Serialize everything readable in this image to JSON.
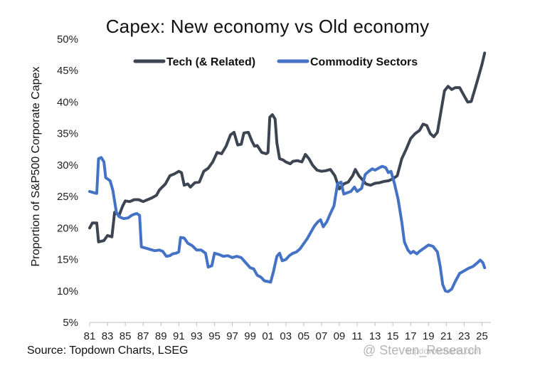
{
  "chart_data": {
    "type": "line",
    "title": "Capex: New economy vs Old economy",
    "ylabel": "Proportion of S&P500 Corporate Capex",
    "xlabel": "",
    "ylim": [
      5,
      50
    ],
    "xlim": [
      1981,
      2026
    ],
    "y_ticks": [
      5,
      10,
      15,
      20,
      25,
      30,
      35,
      40,
      45,
      50
    ],
    "y_tick_labels": [
      "5%",
      "10%",
      "15%",
      "20%",
      "25%",
      "30%",
      "35%",
      "40%",
      "45%",
      "50%"
    ],
    "x_ticks": [
      1981,
      1983,
      1985,
      1987,
      1989,
      1991,
      1993,
      1995,
      1997,
      1999,
      2001,
      2003,
      2005,
      2007,
      2009,
      2011,
      2013,
      2015,
      2017,
      2019,
      2021,
      2023,
      2025
    ],
    "x_tick_labels": [
      "81",
      "83",
      "85",
      "87",
      "89",
      "91",
      "93",
      "95",
      "97",
      "99",
      "01",
      "03",
      "05",
      "07",
      "09",
      "11",
      "13",
      "15",
      "17",
      "19",
      "21",
      "23",
      "25"
    ],
    "legend_position": "top-center",
    "series": [
      {
        "name": "Tech (& Related)",
        "color": "#3d4553",
        "points": [
          [
            1981.0,
            20.0
          ],
          [
            1981.3,
            20.8
          ],
          [
            1981.8,
            20.8
          ],
          [
            1982.0,
            17.8
          ],
          [
            1982.6,
            18.0
          ],
          [
            1983.0,
            18.8
          ],
          [
            1983.5,
            18.6
          ],
          [
            1983.8,
            22.5
          ],
          [
            1984.3,
            22.0
          ],
          [
            1984.7,
            23.5
          ],
          [
            1985.0,
            24.3
          ],
          [
            1985.5,
            24.2
          ],
          [
            1986.0,
            24.5
          ],
          [
            1986.5,
            24.5
          ],
          [
            1987.0,
            24.2
          ],
          [
            1987.5,
            24.5
          ],
          [
            1988.0,
            24.8
          ],
          [
            1988.5,
            25.2
          ],
          [
            1988.8,
            26.0
          ],
          [
            1989.0,
            26.3
          ],
          [
            1989.5,
            27.0
          ],
          [
            1990.0,
            28.3
          ],
          [
            1990.5,
            28.6
          ],
          [
            1991.0,
            29.0
          ],
          [
            1991.3,
            28.8
          ],
          [
            1991.6,
            26.8
          ],
          [
            1992.0,
            27.0
          ],
          [
            1992.3,
            26.5
          ],
          [
            1992.8,
            27.2
          ],
          [
            1993.3,
            27.3
          ],
          [
            1993.8,
            29.0
          ],
          [
            1994.3,
            29.5
          ],
          [
            1994.8,
            30.5
          ],
          [
            1995.3,
            32.0
          ],
          [
            1995.8,
            31.8
          ],
          [
            1996.3,
            33.0
          ],
          [
            1996.8,
            34.8
          ],
          [
            1997.2,
            35.2
          ],
          [
            1997.6,
            33.2
          ],
          [
            1998.0,
            33.3
          ],
          [
            1998.3,
            35.1
          ],
          [
            1998.8,
            35.2
          ],
          [
            1999.2,
            33.8
          ],
          [
            1999.5,
            33.0
          ],
          [
            1999.8,
            33.1
          ],
          [
            2000.3,
            32.0
          ],
          [
            2000.8,
            31.8
          ],
          [
            2001.0,
            32.0
          ],
          [
            2001.2,
            37.6
          ],
          [
            2001.5,
            38.0
          ],
          [
            2001.8,
            37.3
          ],
          [
            2002.0,
            33.5
          ],
          [
            2002.3,
            31.0
          ],
          [
            2002.7,
            30.8
          ],
          [
            2003.0,
            30.5
          ],
          [
            2003.5,
            30.2
          ],
          [
            2003.8,
            30.6
          ],
          [
            2004.3,
            30.7
          ],
          [
            2004.8,
            30.5
          ],
          [
            2005.2,
            31.7
          ],
          [
            2005.6,
            31.0
          ],
          [
            2006.0,
            30.0
          ],
          [
            2006.5,
            29.2
          ],
          [
            2007.0,
            29.0
          ],
          [
            2007.5,
            29.1
          ],
          [
            2008.0,
            29.3
          ],
          [
            2008.5,
            28.3
          ],
          [
            2009.0,
            26.2
          ],
          [
            2009.5,
            27.0
          ],
          [
            2010.0,
            27.3
          ],
          [
            2010.5,
            28.3
          ],
          [
            2010.8,
            29.3
          ],
          [
            2011.2,
            28.3
          ],
          [
            2011.5,
            27.8
          ],
          [
            2012.0,
            27.0
          ],
          [
            2012.5,
            26.8
          ],
          [
            2013.0,
            27.1
          ],
          [
            2013.5,
            27.2
          ],
          [
            2014.0,
            27.4
          ],
          [
            2014.5,
            27.5
          ],
          [
            2015.0,
            27.8
          ],
          [
            2015.5,
            28.3
          ],
          [
            2016.0,
            31.0
          ],
          [
            2016.5,
            32.5
          ],
          [
            2017.0,
            34.2
          ],
          [
            2017.5,
            35.0
          ],
          [
            2018.0,
            35.5
          ],
          [
            2018.4,
            36.5
          ],
          [
            2018.8,
            36.3
          ],
          [
            2019.2,
            35.0
          ],
          [
            2019.6,
            34.5
          ],
          [
            2020.0,
            35.2
          ],
          [
            2020.4,
            38.5
          ],
          [
            2020.8,
            41.8
          ],
          [
            2021.2,
            42.5
          ],
          [
            2021.6,
            42.0
          ],
          [
            2022.0,
            42.3
          ],
          [
            2022.5,
            42.3
          ],
          [
            2023.0,
            41.0
          ],
          [
            2023.4,
            40.0
          ],
          [
            2023.8,
            40.1
          ],
          [
            2024.2,
            42.0
          ],
          [
            2024.6,
            44.0
          ],
          [
            2025.0,
            46.0
          ],
          [
            2025.3,
            47.8
          ]
        ]
      },
      {
        "name": "Commodity Sectors",
        "color": "#4472c4",
        "points": [
          [
            1981.0,
            25.8
          ],
          [
            1981.5,
            25.6
          ],
          [
            1981.8,
            25.5
          ],
          [
            1982.0,
            31.0
          ],
          [
            1982.3,
            31.2
          ],
          [
            1982.6,
            30.5
          ],
          [
            1982.8,
            28.0
          ],
          [
            1983.3,
            27.5
          ],
          [
            1983.6,
            26.0
          ],
          [
            1984.0,
            22.5
          ],
          [
            1984.3,
            21.8
          ],
          [
            1984.8,
            21.5
          ],
          [
            1985.3,
            21.6
          ],
          [
            1985.7,
            22.0
          ],
          [
            1986.0,
            22.2
          ],
          [
            1986.3,
            22.3
          ],
          [
            1986.6,
            22.0
          ],
          [
            1986.8,
            17.0
          ],
          [
            1987.3,
            16.8
          ],
          [
            1987.8,
            16.6
          ],
          [
            1988.3,
            16.4
          ],
          [
            1988.8,
            16.5
          ],
          [
            1989.2,
            16.3
          ],
          [
            1989.6,
            15.5
          ],
          [
            1990.0,
            15.6
          ],
          [
            1990.3,
            15.9
          ],
          [
            1990.7,
            16.0
          ],
          [
            1991.0,
            16.2
          ],
          [
            1991.2,
            18.5
          ],
          [
            1991.6,
            18.4
          ],
          [
            1992.0,
            17.6
          ],
          [
            1992.5,
            17.2
          ],
          [
            1993.0,
            16.5
          ],
          [
            1993.5,
            16.5
          ],
          [
            1994.0,
            16.0
          ],
          [
            1994.3,
            13.8
          ],
          [
            1994.7,
            14.0
          ],
          [
            1995.0,
            16.0
          ],
          [
            1995.5,
            15.8
          ],
          [
            1996.0,
            15.5
          ],
          [
            1996.5,
            15.6
          ],
          [
            1997.0,
            15.3
          ],
          [
            1997.5,
            15.5
          ],
          [
            1998.0,
            15.3
          ],
          [
            1998.5,
            14.5
          ],
          [
            1999.0,
            13.7
          ],
          [
            1999.4,
            13.5
          ],
          [
            1999.8,
            12.5
          ],
          [
            2000.2,
            12.2
          ],
          [
            2000.6,
            11.6
          ],
          [
            2001.0,
            11.5
          ],
          [
            2001.3,
            11.4
          ],
          [
            2001.6,
            13.0
          ],
          [
            2002.0,
            15.5
          ],
          [
            2002.3,
            16.0
          ],
          [
            2002.6,
            14.8
          ],
          [
            2003.0,
            15.0
          ],
          [
            2003.4,
            15.6
          ],
          [
            2003.8,
            16.0
          ],
          [
            2004.2,
            16.2
          ],
          [
            2004.6,
            16.7
          ],
          [
            2005.0,
            17.5
          ],
          [
            2005.4,
            18.3
          ],
          [
            2005.8,
            19.3
          ],
          [
            2006.2,
            20.3
          ],
          [
            2006.6,
            21.0
          ],
          [
            2006.9,
            21.3
          ],
          [
            2007.2,
            20.2
          ],
          [
            2007.6,
            21.0
          ],
          [
            2008.0,
            22.3
          ],
          [
            2008.4,
            23.5
          ],
          [
            2008.8,
            27.0
          ],
          [
            2009.2,
            27.3
          ],
          [
            2009.5,
            25.4
          ],
          [
            2009.9,
            25.6
          ],
          [
            2010.3,
            25.8
          ],
          [
            2010.7,
            26.5
          ],
          [
            2011.0,
            25.8
          ],
          [
            2011.5,
            26.3
          ],
          [
            2011.9,
            28.5
          ],
          [
            2012.3,
            29.0
          ],
          [
            2012.7,
            29.4
          ],
          [
            2013.0,
            29.2
          ],
          [
            2013.4,
            29.5
          ],
          [
            2013.8,
            29.8
          ],
          [
            2014.2,
            29.6
          ],
          [
            2014.5,
            28.8
          ],
          [
            2014.8,
            29.0
          ],
          [
            2015.2,
            27.0
          ],
          [
            2015.6,
            24.5
          ],
          [
            2016.0,
            21.0
          ],
          [
            2016.3,
            17.8
          ],
          [
            2016.7,
            16.5
          ],
          [
            2017.0,
            16.0
          ],
          [
            2017.3,
            16.3
          ],
          [
            2017.7,
            15.9
          ],
          [
            2018.0,
            16.3
          ],
          [
            2018.5,
            16.8
          ],
          [
            2019.0,
            17.3
          ],
          [
            2019.5,
            17.1
          ],
          [
            2020.0,
            16.2
          ],
          [
            2020.3,
            14.0
          ],
          [
            2020.6,
            11.0
          ],
          [
            2020.9,
            10.0
          ],
          [
            2021.2,
            9.9
          ],
          [
            2021.6,
            10.3
          ],
          [
            2022.0,
            11.5
          ],
          [
            2022.5,
            12.8
          ],
          [
            2023.0,
            13.2
          ],
          [
            2023.5,
            13.6
          ],
          [
            2024.0,
            13.9
          ],
          [
            2024.5,
            14.5
          ],
          [
            2024.8,
            14.9
          ],
          [
            2025.1,
            14.5
          ],
          [
            2025.3,
            13.7
          ]
        ]
      }
    ]
  },
  "source": "Source: Topdown Charts, LSEG",
  "watermark": "@ Steven_Research",
  "watermark_sub": "topdowncharts.com"
}
